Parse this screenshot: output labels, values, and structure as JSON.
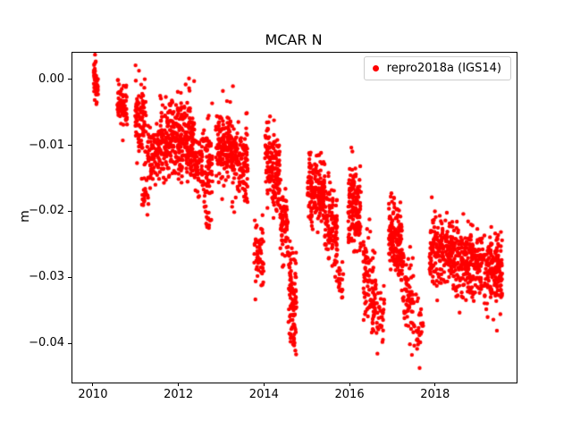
{
  "chart_data": {
    "type": "scatter",
    "title": "MCAR N",
    "xlabel": "",
    "ylabel": "m",
    "xlim": [
      2009.5,
      2019.885
    ],
    "ylim": [
      -0.04583,
      0.0042
    ],
    "xticks": [
      2010,
      2012,
      2014,
      2016,
      2018
    ],
    "xtick_labels": [
      "2010",
      "2012",
      "2014",
      "2016",
      "2018"
    ],
    "yticks": [
      0.0,
      -0.01,
      -0.02,
      -0.03,
      -0.04
    ],
    "ytick_labels": [
      "0.00",
      "−0.01",
      "−0.02",
      "−0.03",
      "−0.04"
    ],
    "grid": false,
    "background": "#ffffff",
    "marker_size_px": 2.2,
    "seed": 20181401,
    "legend": {
      "position": "upper right",
      "entries": [
        {
          "label": "repro2018a (IGS14)",
          "color": "#ff0000",
          "marker": "circle"
        }
      ]
    },
    "series": [
      {
        "name": "repro2018a (IGS14)",
        "color": "#ff0000",
        "clusters": [
          {
            "x0": 2010.0,
            "x1": 2010.1,
            "y0": 0.0005,
            "y1": -0.0005,
            "sd": 0.0013,
            "n": 45
          },
          {
            "x0": 2010.55,
            "x1": 2010.78,
            "y0": -0.003,
            "y1": -0.005,
            "sd": 0.0018,
            "n": 70
          },
          {
            "x0": 2010.97,
            "x1": 2011.22,
            "y0": -0.0045,
            "y1": -0.0065,
            "sd": 0.0026,
            "n": 95
          },
          {
            "x0": 2011.1,
            "x1": 2011.28,
            "y0": -0.0165,
            "y1": -0.0175,
            "sd": 0.0013,
            "n": 22
          },
          {
            "x0": 2011.25,
            "x1": 2011.55,
            "y0": -0.0115,
            "y1": -0.0115,
            "sd": 0.0026,
            "n": 90
          },
          {
            "x0": 2011.55,
            "x1": 2011.95,
            "y0": -0.0095,
            "y1": -0.009,
            "sd": 0.003,
            "n": 160
          },
          {
            "x0": 2011.95,
            "x1": 2012.35,
            "y0": -0.008,
            "y1": -0.01,
            "sd": 0.003,
            "n": 200
          },
          {
            "x0": 2012.35,
            "x1": 2012.78,
            "y0": -0.013,
            "y1": -0.013,
            "sd": 0.0028,
            "n": 130
          },
          {
            "x0": 2012.6,
            "x1": 2012.75,
            "y0": -0.0205,
            "y1": -0.021,
            "sd": 0.0012,
            "n": 14
          },
          {
            "x0": 2012.85,
            "x1": 2013.35,
            "y0": -0.01,
            "y1": -0.011,
            "sd": 0.003,
            "n": 200
          },
          {
            "x0": 2013.35,
            "x1": 2013.6,
            "y0": -0.0125,
            "y1": -0.013,
            "sd": 0.0025,
            "n": 90
          },
          {
            "x0": 2013.75,
            "x1": 2013.97,
            "y0": -0.0255,
            "y1": -0.0275,
            "sd": 0.003,
            "n": 55
          },
          {
            "x0": 2014.0,
            "x1": 2014.35,
            "y0": -0.012,
            "y1": -0.014,
            "sd": 0.003,
            "n": 160
          },
          {
            "x0": 2014.35,
            "x1": 2014.55,
            "y0": -0.02,
            "y1": -0.024,
            "sd": 0.003,
            "n": 70
          },
          {
            "x0": 2014.55,
            "x1": 2014.74,
            "y0": -0.031,
            "y1": -0.033,
            "sd": 0.0035,
            "n": 90
          },
          {
            "x0": 2014.6,
            "x1": 2014.72,
            "y0": -0.0385,
            "y1": -0.039,
            "sd": 0.0015,
            "n": 12
          },
          {
            "x0": 2015.0,
            "x1": 2015.4,
            "y0": -0.016,
            "y1": -0.017,
            "sd": 0.0025,
            "n": 180
          },
          {
            "x0": 2015.4,
            "x1": 2015.7,
            "y0": -0.021,
            "y1": -0.024,
            "sd": 0.003,
            "n": 120
          },
          {
            "x0": 2015.72,
            "x1": 2015.84,
            "y0": -0.03,
            "y1": -0.031,
            "sd": 0.002,
            "n": 18
          },
          {
            "x0": 2015.95,
            "x1": 2016.25,
            "y0": -0.019,
            "y1": -0.021,
            "sd": 0.003,
            "n": 150
          },
          {
            "x0": 2016.3,
            "x1": 2016.58,
            "y0": -0.029,
            "y1": -0.033,
            "sd": 0.004,
            "n": 95
          },
          {
            "x0": 2016.58,
            "x1": 2016.8,
            "y0": -0.035,
            "y1": -0.036,
            "sd": 0.0028,
            "n": 35
          },
          {
            "x0": 2016.9,
            "x1": 2017.2,
            "y0": -0.023,
            "y1": -0.025,
            "sd": 0.003,
            "n": 150
          },
          {
            "x0": 2017.2,
            "x1": 2017.48,
            "y0": -0.031,
            "y1": -0.035,
            "sd": 0.0038,
            "n": 75
          },
          {
            "x0": 2017.48,
            "x1": 2017.7,
            "y0": -0.037,
            "y1": -0.0375,
            "sd": 0.0024,
            "n": 28
          },
          {
            "x0": 2017.85,
            "x1": 2018.4,
            "y0": -0.0258,
            "y1": -0.0262,
            "sd": 0.0026,
            "n": 200
          },
          {
            "x0": 2018.4,
            "x1": 2019.0,
            "y0": -0.0268,
            "y1": -0.0278,
            "sd": 0.0027,
            "n": 220
          },
          {
            "x0": 2019.0,
            "x1": 2019.55,
            "y0": -0.028,
            "y1": -0.029,
            "sd": 0.0026,
            "n": 200
          }
        ]
      }
    ]
  }
}
